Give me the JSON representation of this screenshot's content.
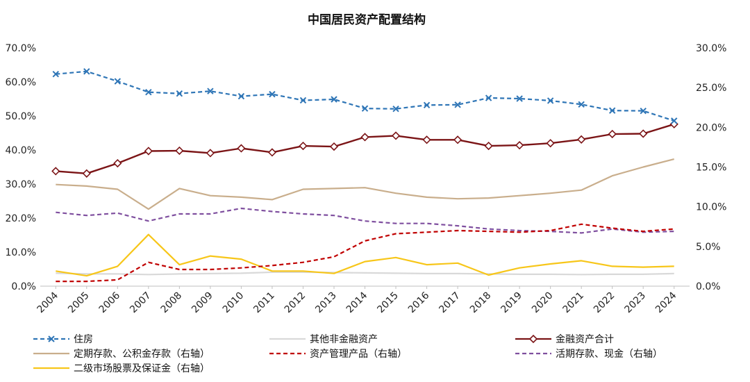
{
  "chart_data": {
    "type": "line",
    "title": "中国居民资产配置结构",
    "categories": [
      "2004",
      "2005",
      "2006",
      "2007",
      "2008",
      "2009",
      "2010",
      "2011",
      "2012",
      "2013",
      "2014",
      "2015",
      "2016",
      "2017",
      "2018",
      "2019",
      "2020",
      "2021",
      "2022",
      "2023",
      "2024"
    ],
    "y_left": {
      "ylim": [
        0,
        70
      ],
      "ticks": [
        "0.0%",
        "10.0%",
        "20.0%",
        "30.0%",
        "40.0%",
        "50.0%",
        "60.0%",
        "70.0%"
      ]
    },
    "y_right": {
      "ylim": [
        0,
        30
      ],
      "ticks": [
        "0.0%",
        "5.0%",
        "10.0%",
        "15.0%",
        "20.0%",
        "25.0%",
        "30.0%"
      ]
    },
    "grid": false,
    "legend_position": "bottom",
    "series": [
      {
        "name": "住房",
        "axis": "left",
        "color": "#2E75B6",
        "style": "dashed",
        "marker": "x",
        "values": [
          62.3,
          63.1,
          60.2,
          57.0,
          56.6,
          57.3,
          55.8,
          56.4,
          54.6,
          54.9,
          52.2,
          52.1,
          53.2,
          53.3,
          55.3,
          55.1,
          54.5,
          53.4,
          51.6,
          51.5,
          48.6
        ]
      },
      {
        "name": "其他非金融资产",
        "axis": "left",
        "color": "#D9D9D9",
        "style": "solid",
        "marker": "none",
        "values": [
          3.8,
          3.6,
          3.6,
          3.4,
          3.6,
          3.7,
          3.8,
          4.1,
          4.1,
          4.0,
          3.9,
          3.8,
          3.7,
          3.7,
          3.6,
          3.5,
          3.5,
          3.4,
          3.5,
          3.5,
          3.7
        ]
      },
      {
        "name": "金融资产合计",
        "axis": "left",
        "color": "#7B1416",
        "style": "solid",
        "marker": "diamond",
        "values": [
          33.8,
          33.1,
          36.1,
          39.7,
          39.8,
          39.1,
          40.5,
          39.3,
          41.2,
          41.0,
          43.8,
          44.2,
          43.0,
          43.0,
          41.2,
          41.4,
          42.0,
          43.1,
          44.7,
          44.8,
          47.6
        ]
      },
      {
        "name": "定期存款、公积金存款（右轴）",
        "axis": "right",
        "color": "#C9AE8C",
        "style": "solid",
        "marker": "none",
        "values": [
          12.8,
          12.6,
          12.2,
          9.7,
          12.3,
          11.4,
          11.2,
          10.9,
          12.2,
          12.3,
          12.4,
          11.7,
          11.2,
          11.0,
          11.1,
          11.4,
          11.7,
          12.1,
          13.9,
          15.0,
          16.0
        ]
      },
      {
        "name": "资产管理产品（右轴）",
        "axis": "right",
        "color": "#C00000",
        "style": "dashed",
        "marker": "none",
        "values": [
          0.6,
          0.6,
          0.8,
          3.0,
          2.1,
          2.1,
          2.3,
          2.6,
          3.0,
          3.7,
          5.7,
          6.6,
          6.8,
          7.0,
          6.9,
          6.8,
          7.0,
          7.8,
          7.3,
          6.9,
          7.2
        ]
      },
      {
        "name": "活期存款、现金（右轴）",
        "axis": "right",
        "color": "#7F4F9F",
        "style": "dashed",
        "marker": "none",
        "values": [
          9.3,
          8.9,
          9.2,
          8.2,
          9.1,
          9.1,
          9.8,
          9.4,
          9.1,
          8.9,
          8.2,
          7.9,
          7.9,
          7.6,
          7.2,
          7.0,
          6.9,
          6.7,
          7.2,
          6.8,
          6.9
        ]
      },
      {
        "name": "二级市场股票及保证金（右轴）",
        "axis": "right",
        "color": "#F7C619",
        "style": "solid",
        "marker": "none",
        "values": [
          1.9,
          1.3,
          2.5,
          6.5,
          2.7,
          3.8,
          3.4,
          1.9,
          1.9,
          1.6,
          3.1,
          3.6,
          2.7,
          2.9,
          1.4,
          2.3,
          2.8,
          3.2,
          2.5,
          2.4,
          2.5
        ]
      }
    ]
  }
}
